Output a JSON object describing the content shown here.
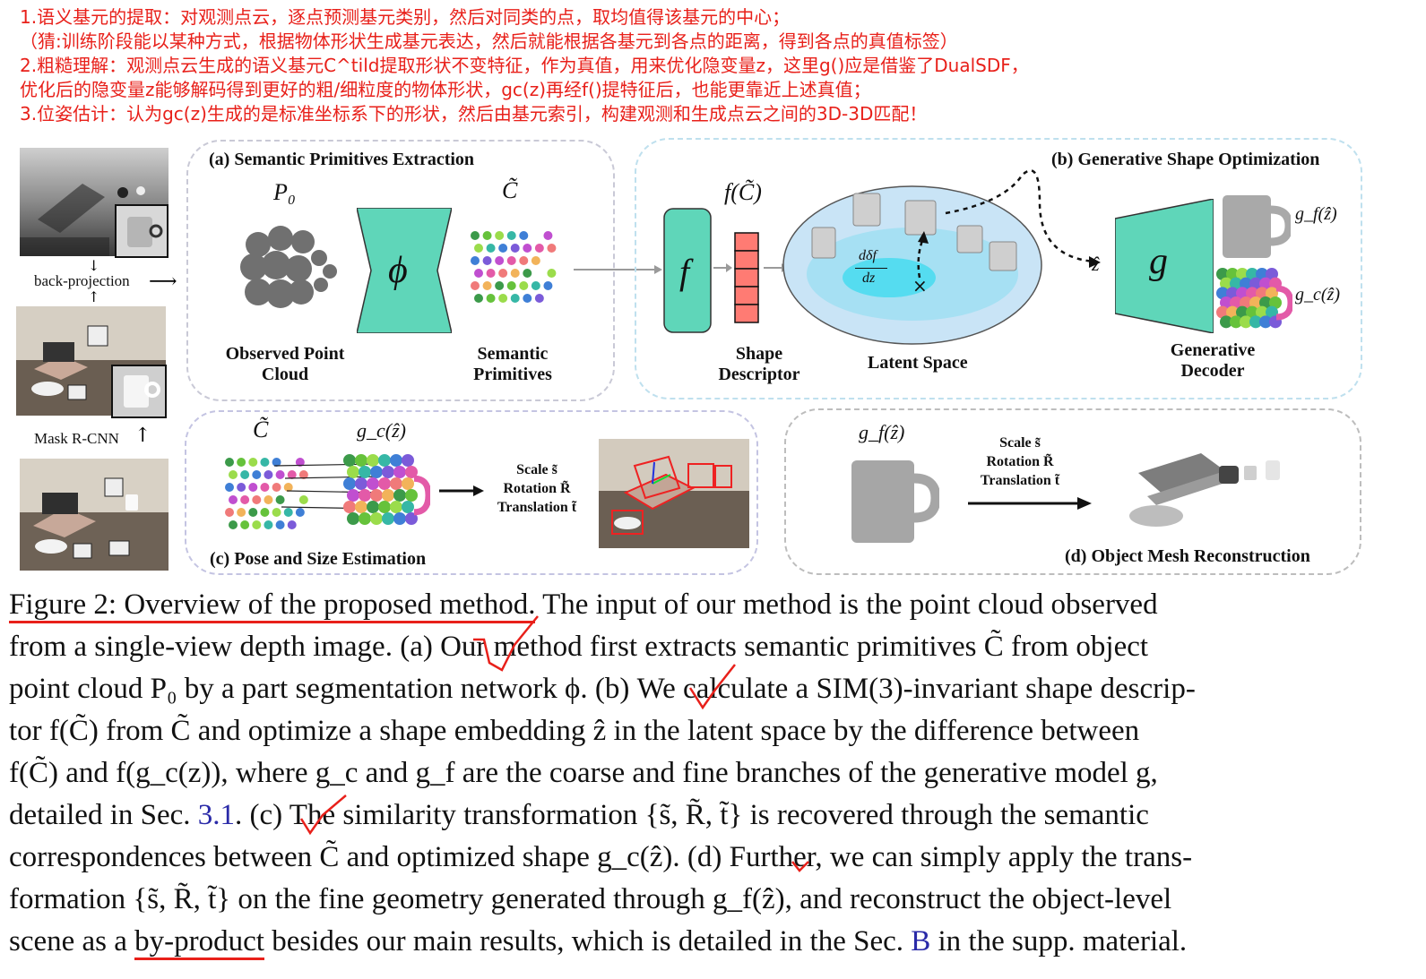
{
  "notes": [
    "1.语义基元的提取：对观测点云，逐点预测基元类别，然后对同类的点，取均值得该基元的中心；",
    "（猜:训练阶段能以某种方式，根据物体形状生成基元表达，然后就能根据各基元到各点的距离，得到各点的真值标签）",
    "2.粗糙理解：观测点云生成的语义基元C^tild提取形状不变特征，作为真值，用来优化隐变量z，这里g()应是借鉴了DualSDF，",
    "优化后的隐变量z能够解码得到更好的粗/细粒度的物体形状，gc(z)再经f()提特征后，也能更靠近上述真值；",
    "3.位姿估计：认为gc(z)生成的是标准坐标系下的形状，然后由基元索引，构建观测和生成点云之间的3D-3D匹配！"
  ],
  "left_column": {
    "back_projection": "back-projection",
    "mask_rcnn": "Mask R-CNN"
  },
  "panel_a": {
    "title": "(a) Semantic Primitives Extraction",
    "p0": "P₀",
    "c_tilde": "C̃",
    "phi": "ϕ",
    "observed_label_1": "Observed Point",
    "observed_label_2": "Cloud",
    "semantic_label_1": "Semantic",
    "semantic_label_2": "Primitives"
  },
  "panel_b": {
    "title": "(b) Generative Shape Optimization",
    "f_c": "f(C̃)",
    "f": "f",
    "shape_descriptor_1": "Shape",
    "shape_descriptor_2": "Descriptor",
    "latent_space": "Latent Space",
    "d_delta_f": "dδf",
    "dz": "dz",
    "z_hat": "ẑ",
    "g": "g",
    "gf": "g_f(ẑ)",
    "gc": "g_c(ẑ)",
    "generative_decoder_1": "Generative",
    "generative_decoder_2": "Decoder"
  },
  "panel_c": {
    "title": "(c) Pose and Size Estimation",
    "c_tilde": "C̃",
    "gc": "g_c(ẑ)",
    "scale": "Scale s̃",
    "rotation": "Rotation R̃",
    "translation": "Translation t̃"
  },
  "panel_d": {
    "title": "(d) Object Mesh Reconstruction",
    "gf": "g_f(ẑ)",
    "scale": "Scale s̃",
    "rotation": "Rotation R̃",
    "translation": "Translation t̃"
  },
  "caption": {
    "l1a": "Figure 2: Overview of the proposed method.",
    "l1b": " The input of our method is the point cloud observed",
    "l2": "from a single-view depth image.  (a) Our method first extracts semantic primitives C̃ from object",
    "l3": "point cloud P₀ by a part segmentation network ϕ. (b) We calculate a SIM(3)-invariant shape descrip-",
    "l4": "tor f(C̃) from C̃ and optimize a shape embedding ẑ in the latent space by the difference between",
    "l5": "f(C̃) and f(g_c(z)), where g_c and g_f are the coarse and fine branches of the generative model g,",
    "l6a": "detailed in Sec. ",
    "l6ref": "3.1",
    "l6b": ".  (c) The similarity transformation {s̃, R̃, t̃} is recovered through the semantic",
    "l7": "correspondences between C̃ and optimized shape g_c(ẑ). (d) Further, we can simply apply the trans-",
    "l8": "formation {s̃, R̃, t̃} on the fine geometry generated through g_f(ẑ), and reconstruct the object-level",
    "l9a": "scene as a ",
    "l9u": "by-product",
    "l9b": " besides our main results, which is detailed in the Sec. ",
    "l9ref": "B",
    "l9c": " in the supp. material."
  }
}
